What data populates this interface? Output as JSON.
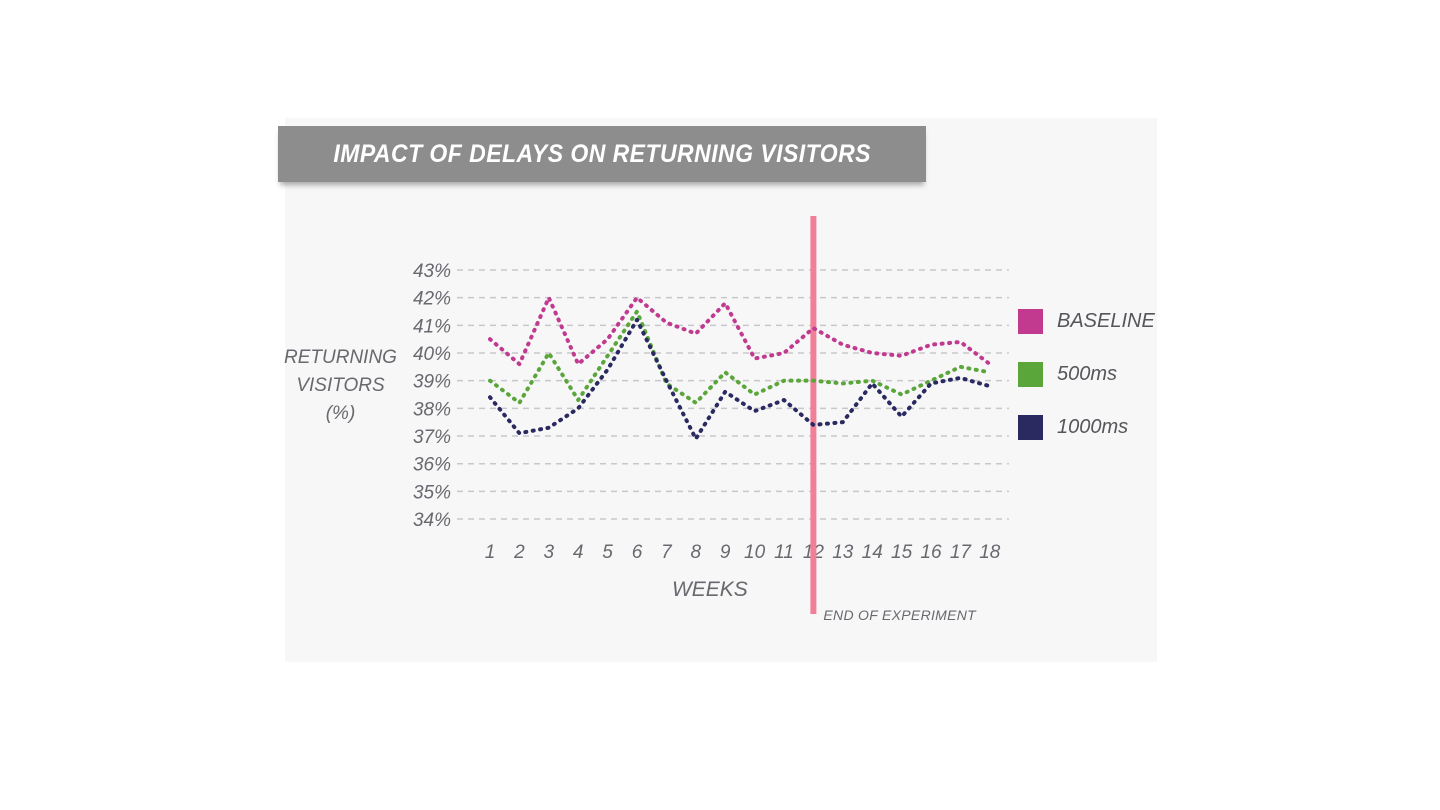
{
  "title": "IMPACT OF DELAYS ON RETURNING VISITORS",
  "chart_data": {
    "type": "line",
    "style": "dotted",
    "x": [
      1,
      2,
      3,
      4,
      5,
      6,
      7,
      8,
      9,
      10,
      11,
      12,
      13,
      14,
      15,
      16,
      17,
      18
    ],
    "xlabel": "WEEKS",
    "ylabel": "RETURNING VISITORS (%)",
    "ylabel_lines": [
      "RETURNING",
      "VISITORS",
      "(%)"
    ],
    "y_ticks": [
      43,
      42,
      41,
      40,
      39,
      38,
      37,
      36,
      35,
      34
    ],
    "y_tick_suffix": "%",
    "ylim": [
      34,
      43
    ],
    "grid": true,
    "legend_position": "right",
    "series": [
      {
        "name": "BASELINE",
        "color": "#c13a90",
        "values": [
          40.5,
          39.6,
          42.0,
          39.6,
          40.5,
          42.0,
          41.1,
          40.7,
          41.8,
          39.8,
          40.0,
          40.9,
          40.3,
          40.0,
          39.9,
          40.3,
          40.4,
          39.6
        ]
      },
      {
        "name": "500ms",
        "color": "#5ba63b",
        "values": [
          39.0,
          38.2,
          40.0,
          38.3,
          39.9,
          41.5,
          38.9,
          38.2,
          39.3,
          38.5,
          39.0,
          39.0,
          38.9,
          39.0,
          38.5,
          39.0,
          39.5,
          39.3
        ]
      },
      {
        "name": "1000ms",
        "color": "#2a2a61",
        "values": [
          38.4,
          37.1,
          37.3,
          38.0,
          39.4,
          41.2,
          39.0,
          36.9,
          38.6,
          37.9,
          38.3,
          37.4,
          37.5,
          38.9,
          37.7,
          38.9,
          39.1,
          38.8
        ]
      }
    ],
    "annotation": {
      "label": "END OF EXPERIMENT",
      "x": 12,
      "color": "#f07f97"
    }
  }
}
